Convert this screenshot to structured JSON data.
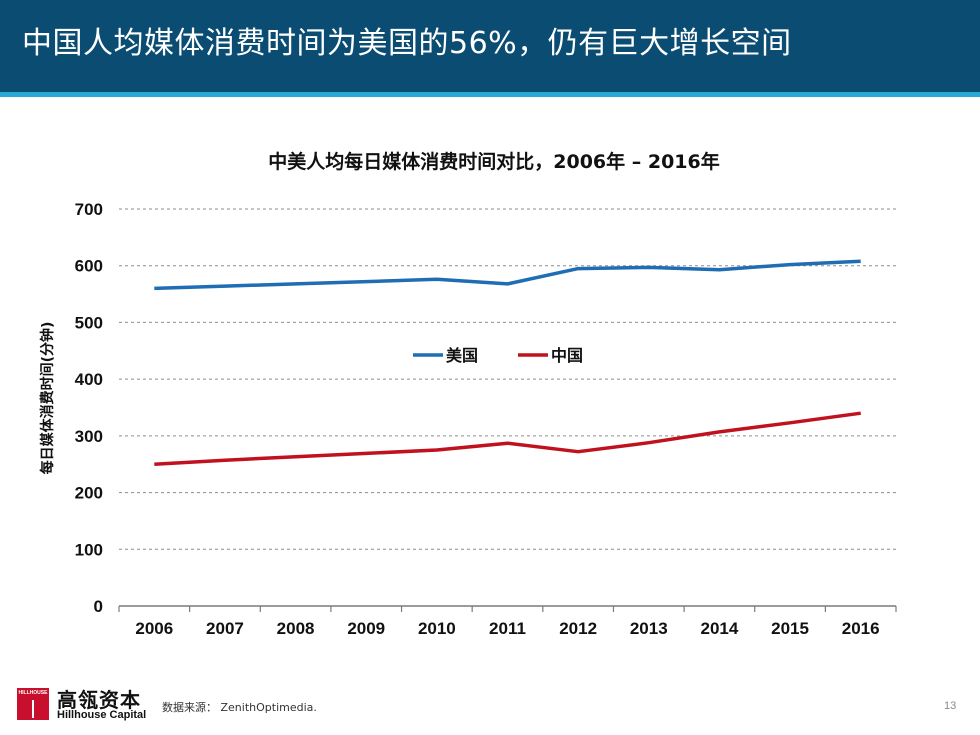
{
  "header": {
    "title": "中国人均媒体消费时间为美国的56%，仍有巨大增长空间"
  },
  "chart_data": {
    "type": "line",
    "title": "中美人均每日媒体消费时间对比，2006年 – 2016年",
    "ylabel": "每日媒体消费时间(分钟)",
    "xlabel": "",
    "categories": [
      "2006",
      "2007",
      "2008",
      "2009",
      "2010",
      "2011",
      "2012",
      "2013",
      "2014",
      "2015",
      "2016"
    ],
    "ylim": [
      0,
      700
    ],
    "yticks": [
      0,
      100,
      200,
      300,
      400,
      500,
      600,
      700
    ],
    "grid": true,
    "legend": "center",
    "series": [
      {
        "name": "美国",
        "color": "#1f6db5",
        "values": [
          560,
          564,
          568,
          572,
          576,
          568,
          595,
          597,
          593,
          602,
          608
        ]
      },
      {
        "name": "中国",
        "color": "#c0121e",
        "values": [
          250,
          257,
          263,
          269,
          275,
          287,
          272,
          288,
          307,
          323,
          340
        ]
      }
    ]
  },
  "footer": {
    "logo_text": "HILLHOUSE",
    "brand_cn": "高瓴资本",
    "brand_en": "Hillhouse Capital",
    "source": "数据来源： ZenithOptimedia.",
    "page": "13"
  }
}
